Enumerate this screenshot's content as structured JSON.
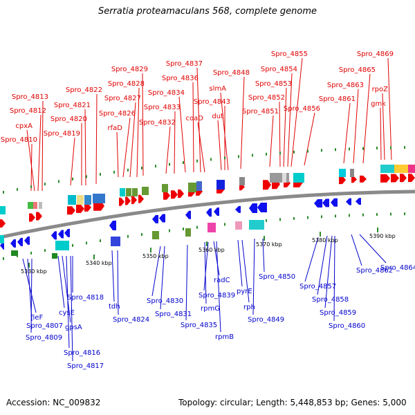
{
  "title": "Serratia proteamaculans 568, complete genome",
  "footer": {
    "accession": "Accession: NC_009832",
    "summary": "Topology: circular; Length: 5,448,853 bp; Genes: 5,000"
  },
  "colors": {
    "upper_labels": "#e00000",
    "lower_labels": "#0000cc",
    "backbone": "#8a8a8a",
    "ticks": "#2a8a2a",
    "forward_arrow": "#ee0000",
    "reverse_arrow": "#1010ee"
  },
  "scale_labels": [
    "5330 kbp",
    "5340 kbp",
    "5350 kbp",
    "5360 kbp",
    "5370 kbp",
    "5380 kbp",
    "5390 kbp"
  ],
  "upper_genes": [
    "Spro_4810",
    "cpxA",
    "Spro_4812",
    "Spro_4813",
    "Spro_4819",
    "Spro_4820",
    "Spro_4821",
    "Spro_4822",
    "rfaD",
    "Spro_4826",
    "Spro_4827",
    "Spro_4828",
    "Spro_4829",
    "Spro_4832",
    "Spro_4833",
    "Spro_4834",
    "Spro_4836",
    "Spro_4837",
    "coaD",
    "dut",
    "Spro_4843",
    "slmA",
    "Spro_4848",
    "Spro_4851",
    "Spro_4852",
    "Spro_4853",
    "Spro_4854",
    "Spro_4855",
    "Spro_4856",
    "Spro_4861",
    "Spro_4863",
    "Spro_4865",
    "gmk",
    "rpoZ",
    "Spro_4869"
  ],
  "lower_genes": [
    "fieF",
    "Spro_4807",
    "Spro_4809",
    "cysE",
    "gpsA",
    "Spro_4816",
    "Spro_4817",
    "Spro_4818",
    "tdh",
    "Spro_4824",
    "Spro_4830",
    "Spro_4831",
    "Spro_4835",
    "rpmG",
    "Spro_4839",
    "radC",
    "rpmB",
    "pyrE",
    "rph",
    "Spro_4849",
    "Spro_4850",
    "Spro_4857",
    "Spro_4858",
    "Spro_4859",
    "Spro_4860",
    "Spro_4862",
    "Spro_4864"
  ]
}
